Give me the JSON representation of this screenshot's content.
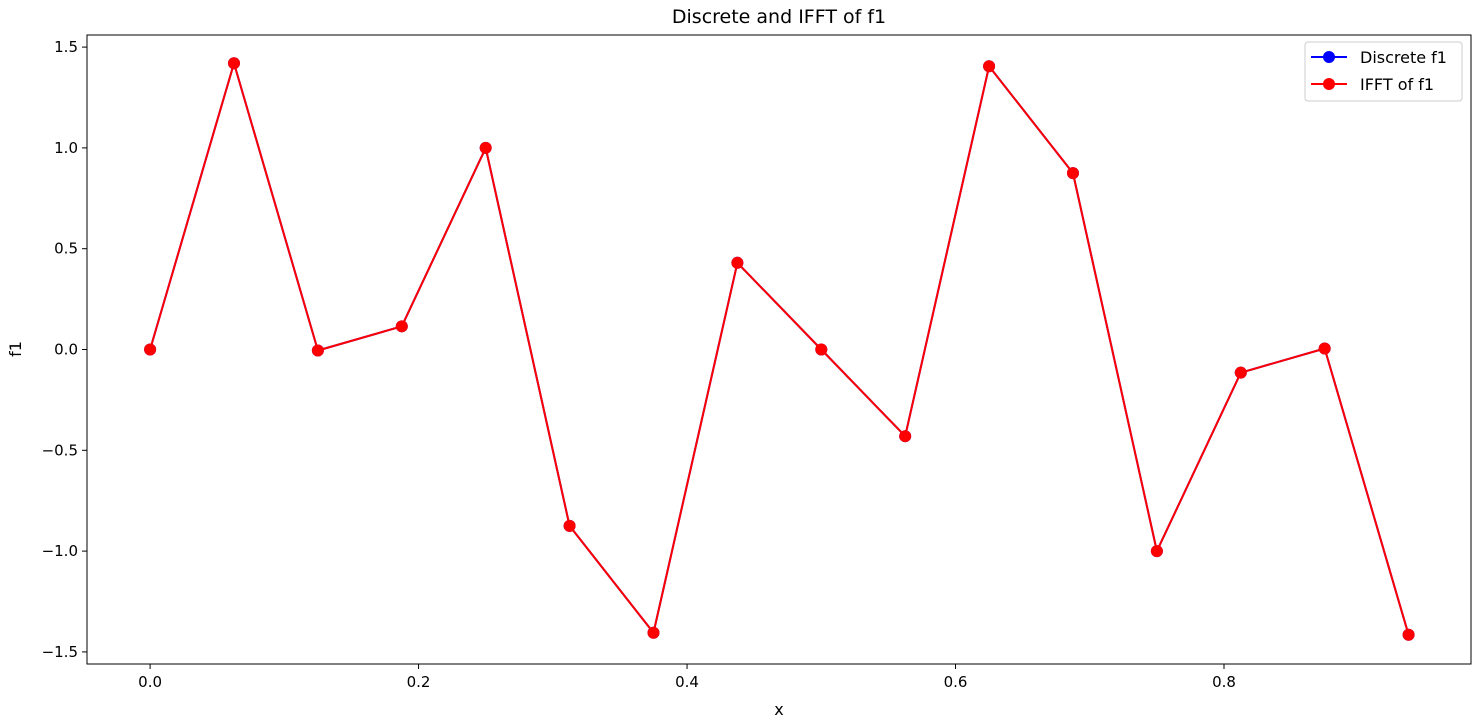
{
  "chart_data": {
    "type": "line",
    "title": "Discrete and IFFT of f1",
    "xlabel": "x",
    "ylabel": "f1",
    "xlim": [
      -0.047,
      0.984
    ],
    "ylim": [
      -1.56,
      1.56
    ],
    "x_ticks": [
      0.0,
      0.2,
      0.4,
      0.6,
      0.8
    ],
    "x_tick_labels": [
      "0.0",
      "0.2",
      "0.4",
      "0.6",
      "0.8"
    ],
    "y_ticks": [
      -1.5,
      -1.0,
      -0.5,
      0.0,
      0.5,
      1.0,
      1.5
    ],
    "y_tick_labels": [
      "−1.5",
      "−1.0",
      "−0.5",
      "0.0",
      "0.5",
      "1.0",
      "1.5"
    ],
    "grid": false,
    "legend_position": "top-right",
    "x": [
      0.0,
      0.0625,
      0.125,
      0.1875,
      0.25,
      0.3125,
      0.375,
      0.4375,
      0.5,
      0.5625,
      0.625,
      0.6875,
      0.75,
      0.8125,
      0.875,
      0.9375
    ],
    "series": [
      {
        "name": "Discrete f1",
        "color": "#0000ff",
        "marker": "circle",
        "values": [
          0.0,
          1.42,
          -0.005,
          0.115,
          1.0,
          -0.875,
          -1.405,
          0.43,
          0.0,
          -0.43,
          1.405,
          0.875,
          -1.0,
          -0.115,
          0.005,
          -1.415
        ]
      },
      {
        "name": "IFFT of f1",
        "color": "#ff0000",
        "marker": "circle",
        "values": [
          0.0,
          1.42,
          -0.005,
          0.115,
          1.0,
          -0.875,
          -1.405,
          0.43,
          0.0,
          -0.43,
          1.405,
          0.875,
          -1.0,
          -0.115,
          0.005,
          -1.415
        ]
      }
    ]
  }
}
